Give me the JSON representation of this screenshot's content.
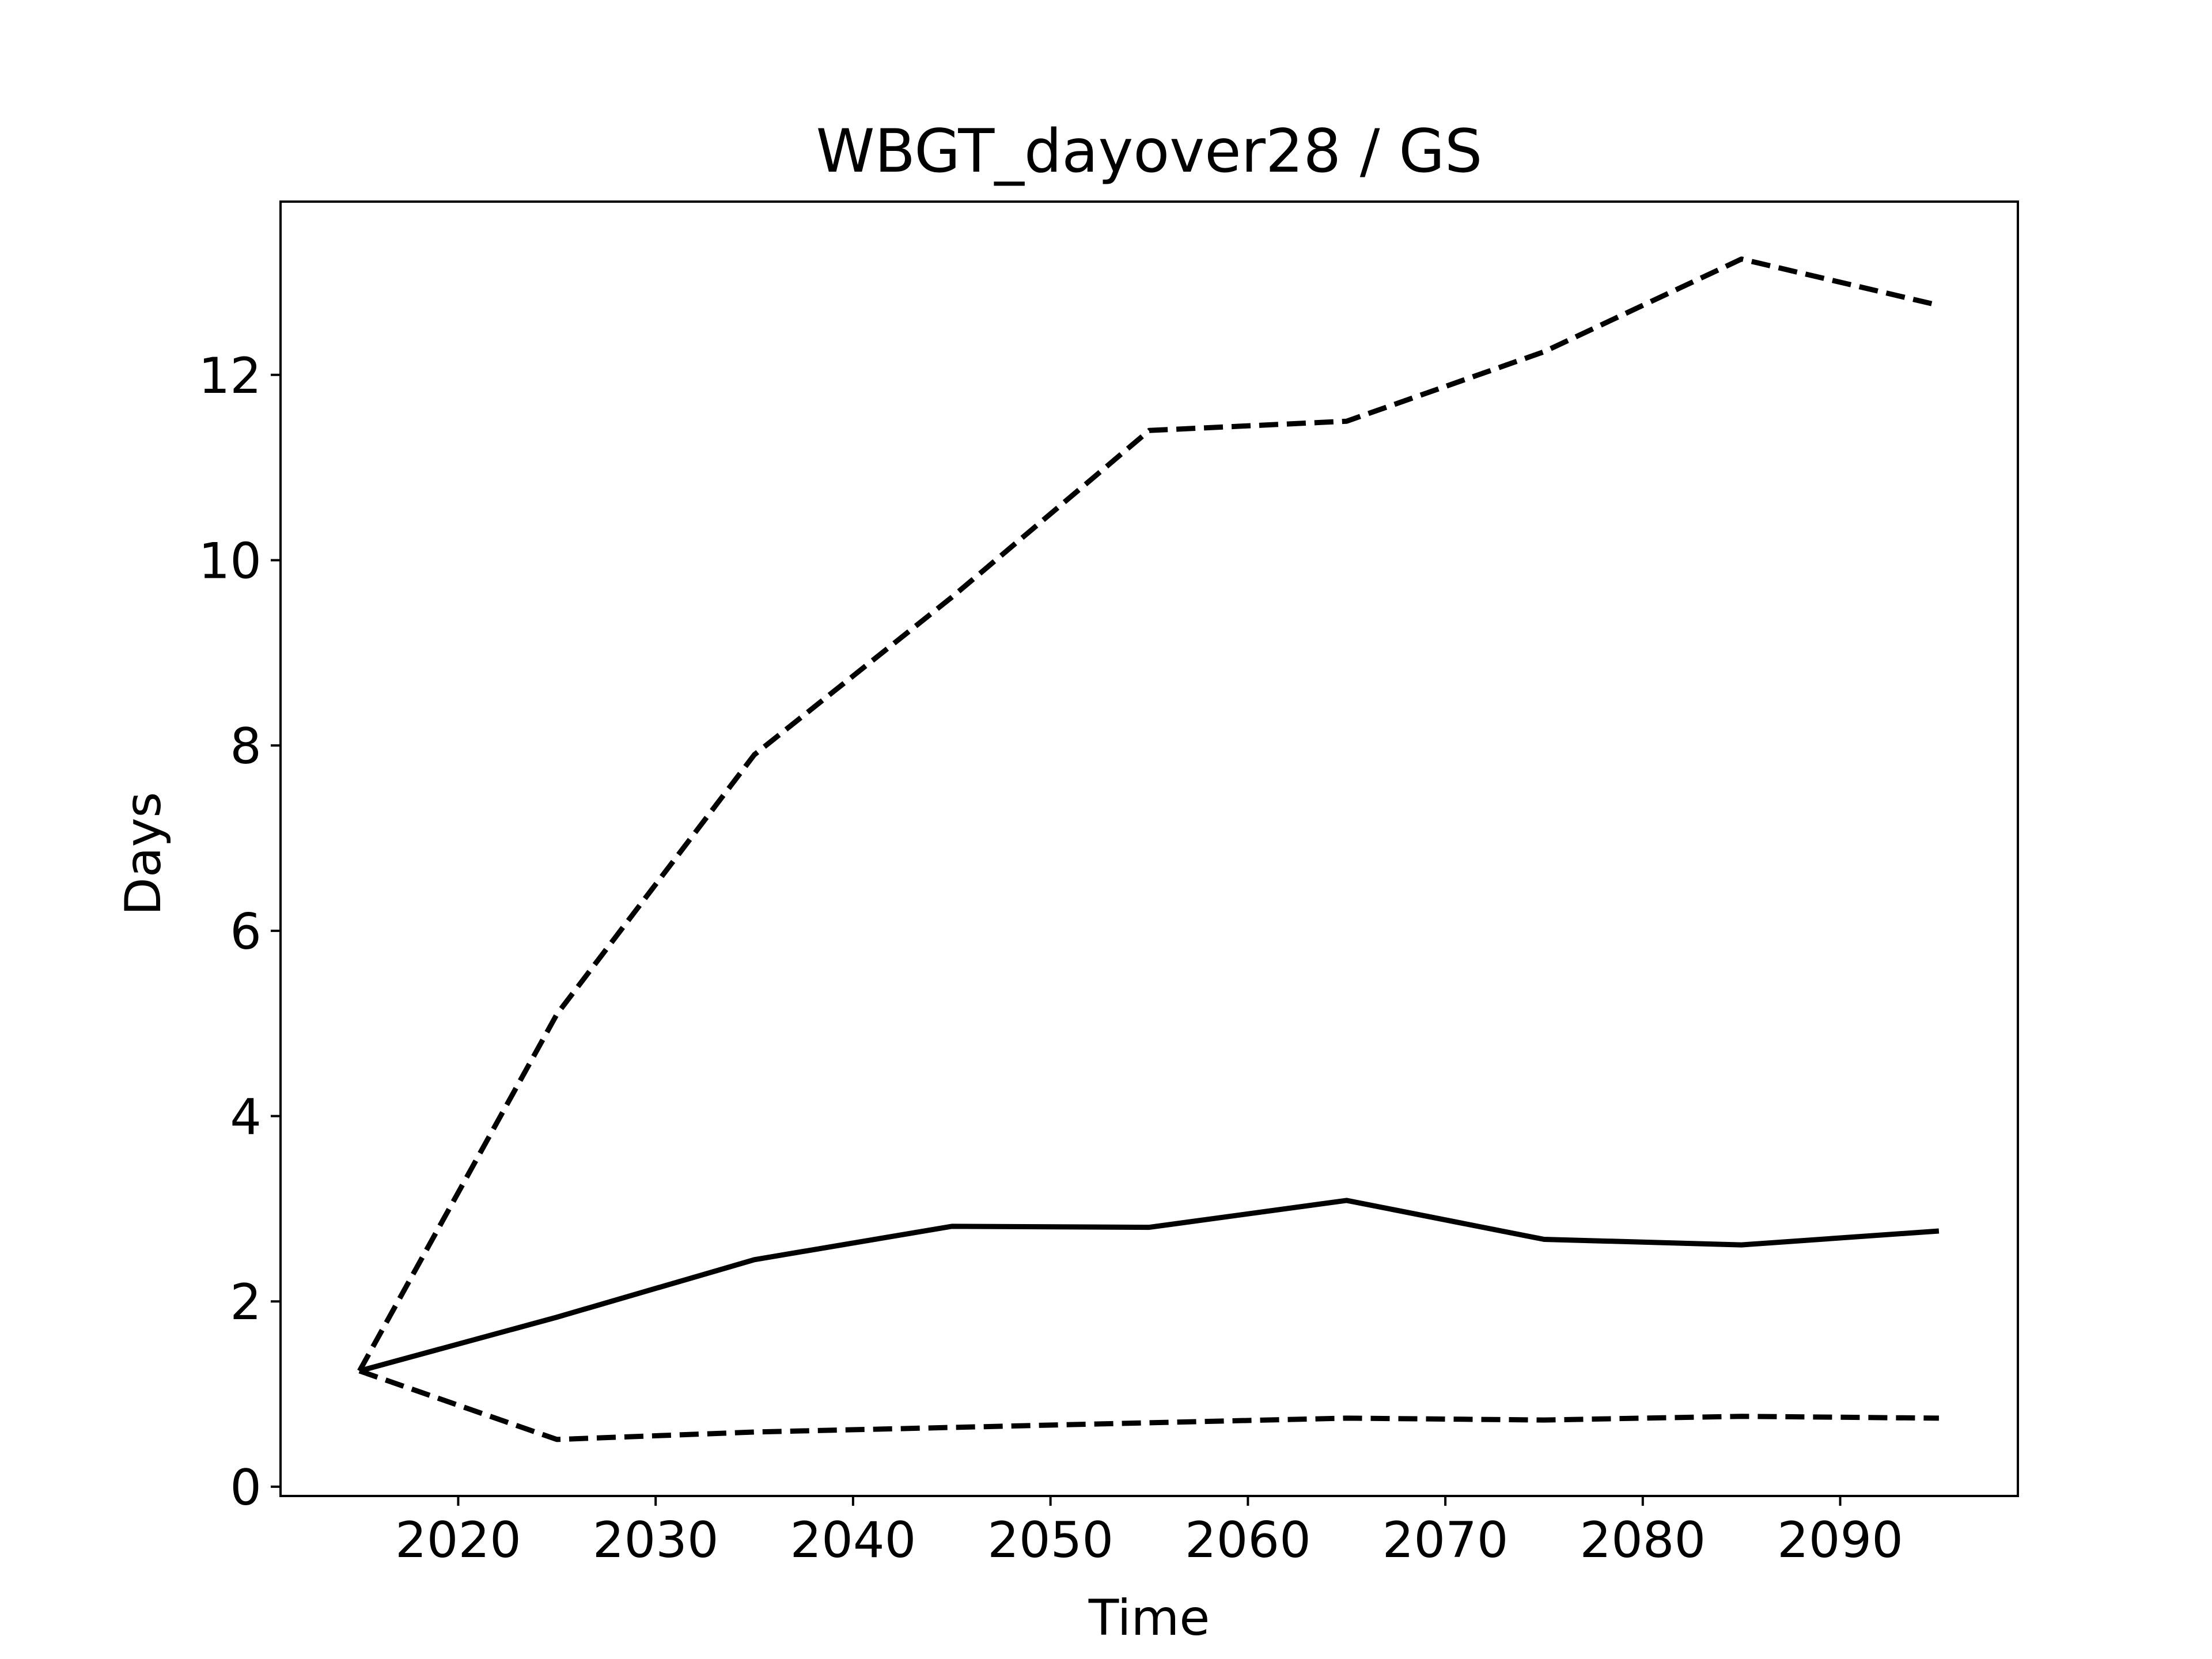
{
  "chart_data": {
    "type": "line",
    "title": "WBGT_dayover28 / GS",
    "xlabel": "Time",
    "ylabel": "Days",
    "x": [
      2015,
      2025,
      2035,
      2045,
      2055,
      2065,
      2075,
      2085,
      2095
    ],
    "series": [
      {
        "style": "solid",
        "color": "#000000",
        "values": [
          1.25,
          1.83,
          2.45,
          2.81,
          2.8,
          3.09,
          2.67,
          2.61,
          2.76
        ]
      },
      {
        "style": "dashed",
        "color": "#000000",
        "values": [
          1.25,
          5.1,
          7.9,
          9.6,
          11.4,
          11.5,
          12.25,
          13.25,
          12.75
        ]
      },
      {
        "style": "dashed",
        "color": "#000000",
        "values": [
          1.25,
          0.51,
          0.59,
          0.64,
          0.69,
          0.74,
          0.72,
          0.76,
          0.74
        ]
      }
    ],
    "xlim": [
      2011,
      2099
    ],
    "ylim": [
      -0.1,
      13.87
    ],
    "xticks": [
      "2020",
      "2030",
      "2040",
      "2050",
      "2060",
      "2070",
      "2080",
      "2090"
    ],
    "yticks": [
      "0",
      "2",
      "4",
      "6",
      "8",
      "10",
      "12"
    ],
    "grid": false,
    "legend": "none"
  }
}
